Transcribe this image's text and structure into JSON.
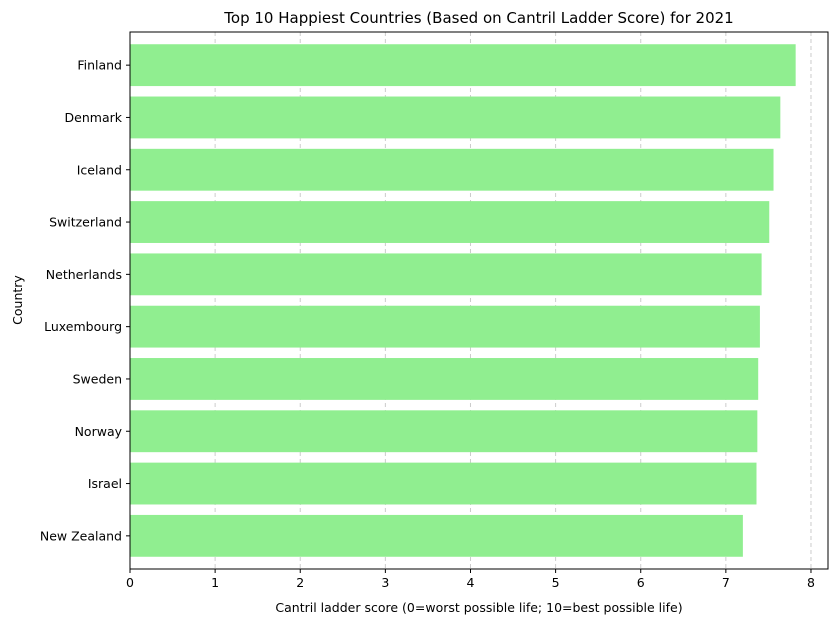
{
  "chart_data": {
    "type": "bar",
    "orientation": "horizontal",
    "title": "Top 10 Happiest Countries (Based on Cantril Ladder Score) for 2021",
    "xlabel": "Cantril ladder score (0=worst possible life; 10=best possible life)",
    "ylabel": "Country",
    "categories": [
      "Finland",
      "Denmark",
      "Iceland",
      "Switzerland",
      "Netherlands",
      "Luxembourg",
      "Sweden",
      "Norway",
      "Israel",
      "New Zealand"
    ],
    "values": [
      7.82,
      7.64,
      7.56,
      7.51,
      7.42,
      7.4,
      7.38,
      7.37,
      7.36,
      7.2
    ],
    "xlim": [
      0,
      8.2
    ],
    "xticks": [
      "0",
      "1",
      "2",
      "3",
      "4",
      "5",
      "6",
      "7",
      "8"
    ],
    "grid": "x-dashed",
    "bar_color": "#90ee90",
    "grid_color": "#cccccc"
  }
}
